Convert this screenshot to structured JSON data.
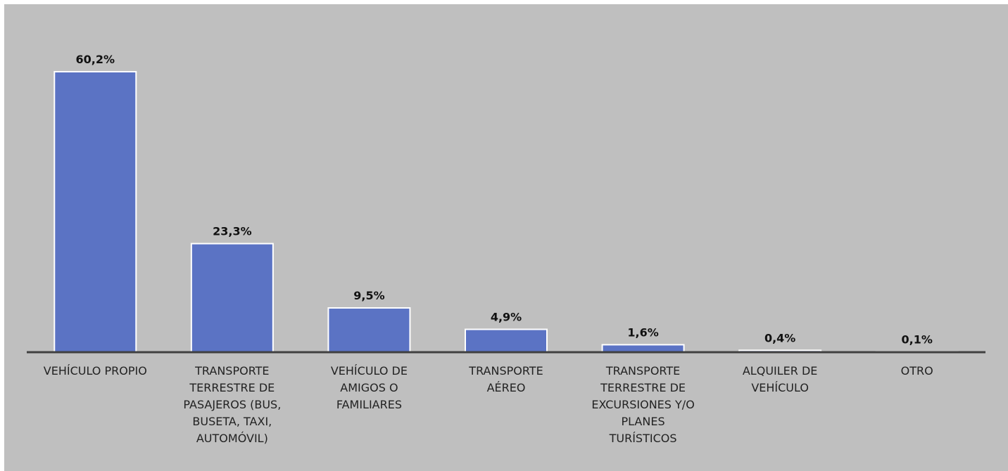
{
  "chart_data": {
    "type": "bar",
    "categories": [
      "VEHÍCULO PROPIO",
      "TRANSPORTE TERRESTRE DE PASAJEROS (BUS, BUSETA, TAXI, AUTOMÓVIL)",
      "VEHÍCULO DE AMIGOS O FAMILIARES",
      "TRANSPORTE AÉREO",
      "TRANSPORTE TERRESTRE DE EXCURSIONES Y/O PLANES TURÍSTICOS",
      "ALQUILER DE VEHÍCULO",
      "OTRO"
    ],
    "values": [
      60.2,
      23.3,
      9.5,
      4.9,
      1.6,
      0.4,
      0.1
    ],
    "value_labels": [
      "60,2%",
      "23,3%",
      "9,5%",
      "4,9%",
      "1,6%",
      "0,4%",
      "0,1%"
    ],
    "color": "#5b73c4"
  }
}
